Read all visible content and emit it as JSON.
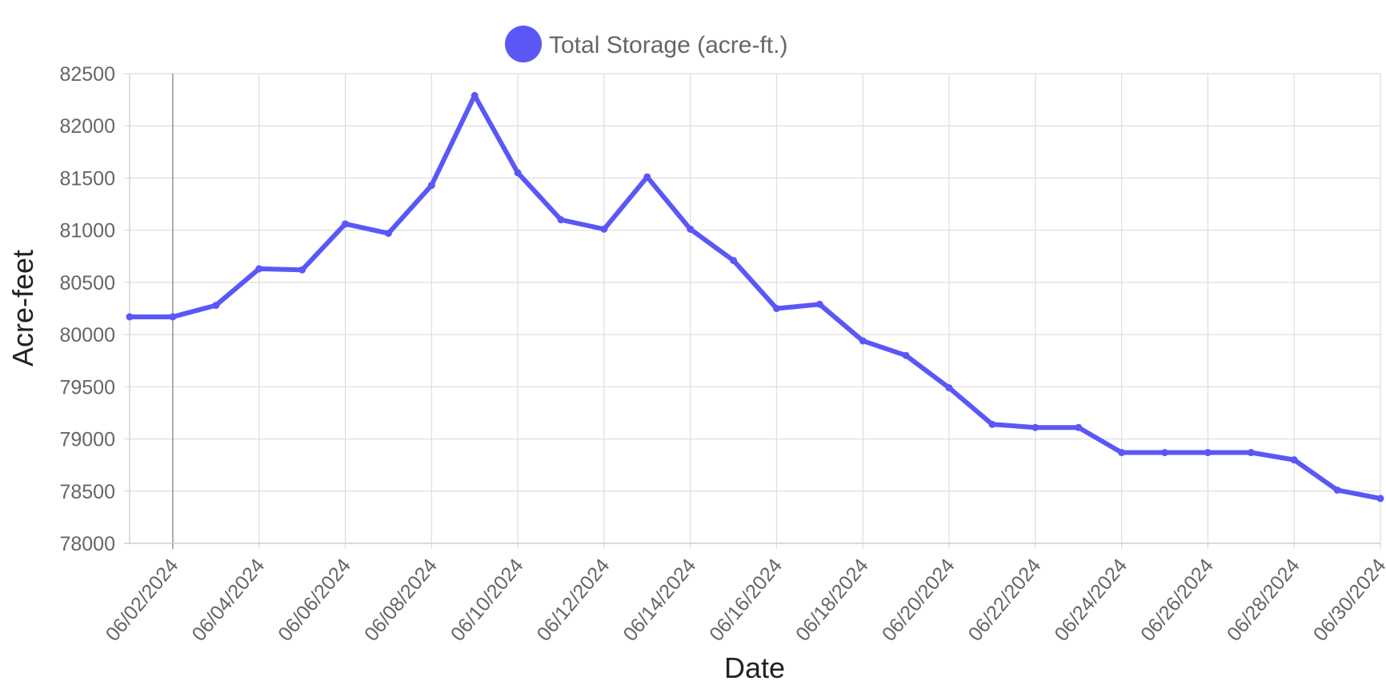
{
  "chart_data": {
    "type": "line",
    "title": "",
    "xlabel": "Date",
    "ylabel": "Acre-feet",
    "ylim": [
      78000,
      82500
    ],
    "y_ticks": [
      78000,
      78500,
      79000,
      79500,
      80000,
      80500,
      81000,
      81500,
      82000,
      82500
    ],
    "x_range": [
      "06/01/2024",
      "06/30/2024"
    ],
    "x_tick_labels": [
      "06/02/2024",
      "06/04/2024",
      "06/06/2024",
      "06/08/2024",
      "06/10/2024",
      "06/12/2024",
      "06/14/2024",
      "06/16/2024",
      "06/18/2024",
      "06/20/2024",
      "06/22/2024",
      "06/24/2024",
      "06/26/2024",
      "06/28/2024",
      "06/30/2024"
    ],
    "grid": true,
    "legend_position": "top-center",
    "series": [
      {
        "name": "Total Storage (acre-ft.)",
        "color": "#5b57f7",
        "points": [
          {
            "x": "06/01/2024",
            "y": 80170
          },
          {
            "x": "06/02/2024",
            "y": 80170
          },
          {
            "x": "06/03/2024",
            "y": 80280
          },
          {
            "x": "06/04/2024",
            "y": 80630
          },
          {
            "x": "06/05/2024",
            "y": 80620
          },
          {
            "x": "06/06/2024",
            "y": 81060
          },
          {
            "x": "06/07/2024",
            "y": 80970
          },
          {
            "x": "06/08/2024",
            "y": 81430
          },
          {
            "x": "06/09/2024",
            "y": 82290
          },
          {
            "x": "06/10/2024",
            "y": 81550
          },
          {
            "x": "06/11/2024",
            "y": 81100
          },
          {
            "x": "06/12/2024",
            "y": 81010
          },
          {
            "x": "06/13/2024",
            "y": 81510
          },
          {
            "x": "06/14/2024",
            "y": 81010
          },
          {
            "x": "06/15/2024",
            "y": 80710
          },
          {
            "x": "06/16/2024",
            "y": 80250
          },
          {
            "x": "06/17/2024",
            "y": 80290
          },
          {
            "x": "06/18/2024",
            "y": 79940
          },
          {
            "x": "06/19/2024",
            "y": 79800
          },
          {
            "x": "06/20/2024",
            "y": 79490
          },
          {
            "x": "06/21/2024",
            "y": 79140
          },
          {
            "x": "06/22/2024",
            "y": 79110
          },
          {
            "x": "06/23/2024",
            "y": 79110
          },
          {
            "x": "06/24/2024",
            "y": 78870
          },
          {
            "x": "06/25/2024",
            "y": 78870
          },
          {
            "x": "06/26/2024",
            "y": 78870
          },
          {
            "x": "06/27/2024",
            "y": 78870
          },
          {
            "x": "06/28/2024",
            "y": 78800
          },
          {
            "x": "06/29/2024",
            "y": 78510
          },
          {
            "x": "06/30/2024",
            "y": 78430
          }
        ]
      }
    ]
  }
}
